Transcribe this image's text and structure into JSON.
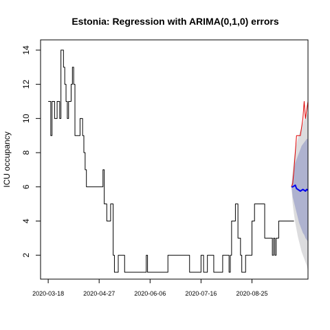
{
  "chart_data": {
    "type": "line",
    "title": "Estonia: Regression with ARIMA(0,1,0) errors",
    "xlabel": "",
    "ylabel": "ICU occupancy",
    "x_ticks": [
      "2020-03-18",
      "2020-04-27",
      "2020-06-06",
      "2020-07-16",
      "2020-08-25"
    ],
    "y_ticks": [
      2,
      4,
      6,
      8,
      10,
      12,
      14
    ],
    "xlim": [
      "2020-03-12",
      "2020-10-08"
    ],
    "ylim": [
      0.6,
      14.6
    ],
    "grid": false,
    "colors": {
      "observed": "#000000",
      "actual_future": "#df0000",
      "forecast": "#0000ee",
      "band_80": "#aeb2cf",
      "band_95": "#dcdcde"
    },
    "series": [
      {
        "role": "observed",
        "x_start": "2020-03-18",
        "values": [
          11,
          11,
          9,
          11,
          11,
          10,
          10,
          11,
          11,
          10,
          14,
          14,
          13,
          12,
          11,
          10,
          11,
          11,
          12,
          13,
          12,
          9,
          9,
          9,
          9,
          10,
          10,
          9,
          8,
          7,
          6,
          6,
          6,
          6,
          6,
          6,
          6,
          6,
          6,
          6,
          6,
          6,
          6,
          7,
          5,
          5,
          4,
          4,
          4,
          5,
          5,
          2,
          1,
          1,
          1,
          2,
          2,
          2,
          2,
          2,
          1,
          1,
          1,
          1,
          1,
          1,
          1,
          1,
          1,
          1,
          1,
          1,
          1,
          1,
          1,
          1,
          1,
          2,
          1,
          1,
          1,
          1,
          1,
          1,
          1,
          1,
          1,
          1,
          1,
          1,
          1,
          1,
          1,
          1,
          2,
          2,
          2,
          2,
          2,
          2,
          2,
          2,
          2,
          2,
          2,
          2,
          2,
          2,
          2,
          2,
          2,
          1,
          1,
          1,
          1,
          1,
          1,
          1,
          1,
          1,
          2,
          2,
          1,
          1,
          1,
          2,
          2,
          2,
          2,
          2,
          1,
          1,
          1,
          1,
          1,
          1,
          1,
          2,
          2,
          2,
          2,
          2,
          1,
          2,
          4,
          4,
          4,
          5,
          5,
          3,
          3,
          2,
          1,
          1,
          1,
          2,
          2,
          2,
          2,
          2,
          4,
          4,
          5,
          5,
          5,
          5,
          5,
          5,
          5,
          5,
          3,
          3,
          3,
          3,
          3,
          3,
          2,
          3,
          2,
          3,
          3,
          4,
          4,
          4,
          4,
          4,
          4,
          4,
          4,
          4,
          4,
          4,
          4,
          4
        ]
      },
      {
        "role": "actual_future",
        "x_start": "2020-09-25",
        "values": [
          6,
          6.2,
          7,
          8,
          9,
          9,
          9,
          9,
          9.5,
          10,
          11,
          10,
          10.5,
          11
        ]
      },
      {
        "role": "forecast",
        "x_start": "2020-09-25",
        "values": [
          6.0,
          6.0,
          6.05,
          6.1,
          5.9,
          5.85,
          5.8,
          5.75,
          5.8,
          5.85,
          5.8,
          5.75,
          5.85,
          5.8
        ],
        "lo80": [
          6.0,
          5.4,
          5.1,
          4.8,
          4.5,
          4.2,
          3.9,
          3.7,
          3.5,
          3.3,
          3.2,
          3.0,
          2.9,
          2.8
        ],
        "hi80": [
          6.0,
          6.6,
          7.0,
          7.4,
          7.6,
          7.8,
          8.0,
          8.2,
          8.4,
          8.5,
          8.6,
          8.7,
          8.8,
          8.8
        ],
        "lo95": [
          6.0,
          5.0,
          4.4,
          3.9,
          3.5,
          3.1,
          2.8,
          2.5,
          2.2,
          2.0,
          1.8,
          1.6,
          1.4,
          1.1
        ],
        "hi95": [
          6.0,
          7.0,
          7.7,
          8.2,
          8.5,
          8.8,
          9.1,
          9.3,
          9.5,
          9.7,
          9.9,
          10.1,
          10.2,
          10.4
        ]
      }
    ]
  }
}
